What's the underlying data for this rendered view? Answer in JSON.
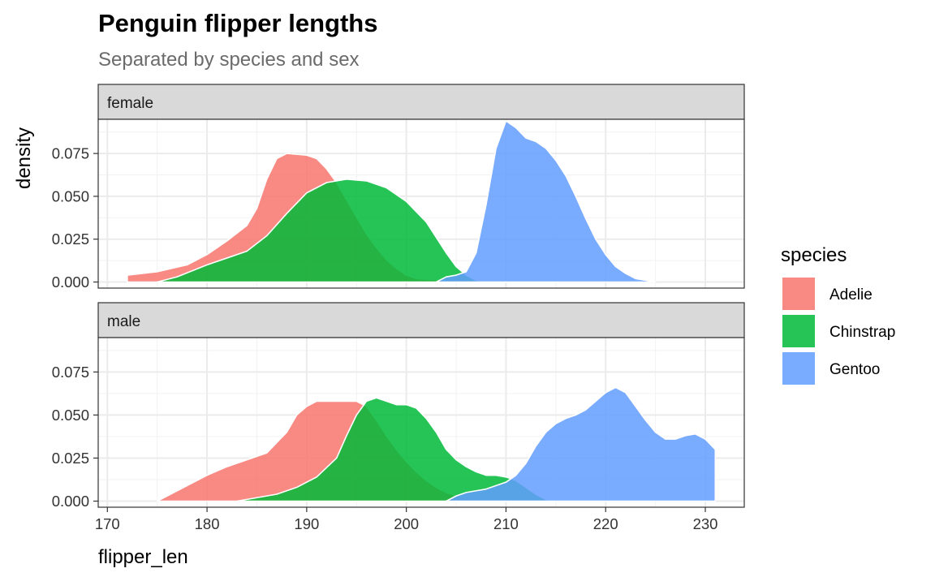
{
  "chart_data": {
    "type": "area",
    "subtype": "faceted-density",
    "title": "Penguin flipper lengths",
    "subtitle": "Separated by species and sex",
    "xlabel": "flipper_len",
    "ylabel": "density",
    "xlim": [
      170,
      233
    ],
    "ylim": [
      0,
      0.097
    ],
    "x_ticks": [
      170,
      180,
      190,
      200,
      210,
      220,
      230
    ],
    "x_tick_labels": [
      "170",
      "180",
      "190",
      "200",
      "210",
      "220",
      "230"
    ],
    "y_ticks": [
      0,
      0.025,
      0.05,
      0.075
    ],
    "y_tick_labels": [
      "0.000",
      "0.025",
      "0.050",
      "0.075"
    ],
    "grid": true,
    "legend": {
      "title": "species",
      "position": "right",
      "entries": [
        "Adelie",
        "Chinstrap",
        "Gentoo"
      ]
    },
    "colors": {
      "Adelie": "#F8766D",
      "Chinstrap": "#00BA38",
      "Gentoo": "#619CFF"
    },
    "fill_opacity": 0.85,
    "facets": [
      {
        "label": "female",
        "series": [
          {
            "name": "Adelie",
            "points": [
              [
                172,
                0.004
              ],
              [
                175,
                0.006
              ],
              [
                178,
                0.01
              ],
              [
                180,
                0.016
              ],
              [
                182,
                0.024
              ],
              [
                184,
                0.033
              ],
              [
                185,
                0.043
              ],
              [
                186,
                0.06
              ],
              [
                187,
                0.072
              ],
              [
                188,
                0.075
              ],
              [
                190,
                0.074
              ],
              [
                191,
                0.072
              ],
              [
                192,
                0.066
              ],
              [
                193,
                0.058
              ],
              [
                194,
                0.048
              ],
              [
                195,
                0.038
              ],
              [
                196,
                0.028
              ],
              [
                197,
                0.02
              ],
              [
                198,
                0.013
              ],
              [
                199,
                0.008
              ],
              [
                200,
                0.004
              ],
              [
                201,
                0.002
              ],
              [
                202,
                0.0015
              ],
              [
                203,
                0.0013
              ],
              [
                204,
                0.0012
              ],
              [
                205,
                0.0011
              ],
              [
                206,
                0.001
              ],
              [
                207,
                0.0009
              ],
              [
                208,
                0.0008
              ],
              [
                209,
                0.0007
              ],
              [
                210,
                0.0006
              ],
              [
                211,
                0.0005
              ],
              [
                212,
                0.0004
              ],
              [
                213,
                0.0003
              ],
              [
                214,
                0.0002
              ],
              [
                215,
                0
              ]
            ]
          },
          {
            "name": "Chinstrap",
            "points": [
              [
                175,
                0
              ],
              [
                177,
                0.003
              ],
              [
                180,
                0.01
              ],
              [
                182,
                0.014
              ],
              [
                184,
                0.018
              ],
              [
                186,
                0.027
              ],
              [
                188,
                0.04
              ],
              [
                190,
                0.052
              ],
              [
                192,
                0.058
              ],
              [
                194,
                0.06
              ],
              [
                196,
                0.059
              ],
              [
                198,
                0.055
              ],
              [
                200,
                0.047
              ],
              [
                202,
                0.035
              ],
              [
                203,
                0.026
              ],
              [
                204,
                0.017
              ],
              [
                205,
                0.009
              ],
              [
                206,
                0.004
              ],
              [
                207,
                0.001
              ],
              [
                208,
                0
              ]
            ]
          },
          {
            "name": "Gentoo",
            "points": [
              [
                203,
                0
              ],
              [
                204,
                0.003
              ],
              [
                205,
                0.004
              ],
              [
                206,
                0.006
              ],
              [
                207,
                0.017
              ],
              [
                208,
                0.045
              ],
              [
                209,
                0.078
              ],
              [
                210,
                0.094
              ],
              [
                211,
                0.09
              ],
              [
                212,
                0.084
              ],
              [
                213,
                0.082
              ],
              [
                214,
                0.078
              ],
              [
                215,
                0.071
              ],
              [
                216,
                0.062
              ],
              [
                217,
                0.05
              ],
              [
                218,
                0.037
              ],
              [
                219,
                0.025
              ],
              [
                220,
                0.016
              ],
              [
                221,
                0.009
              ],
              [
                222,
                0.005
              ],
              [
                223,
                0.002
              ],
              [
                224,
                0.001
              ],
              [
                225,
                0
              ]
            ]
          }
        ]
      },
      {
        "label": "male",
        "series": [
          {
            "name": "Adelie",
            "points": [
              [
                175,
                0
              ],
              [
                176,
                0.003
              ],
              [
                177,
                0.006
              ],
              [
                178,
                0.009
              ],
              [
                180,
                0.015
              ],
              [
                182,
                0.02
              ],
              [
                184,
                0.024
              ],
              [
                186,
                0.028
              ],
              [
                188,
                0.04
              ],
              [
                189,
                0.05
              ],
              [
                190,
                0.055
              ],
              [
                191,
                0.058
              ],
              [
                195,
                0.058
              ],
              [
                196,
                0.055
              ],
              [
                197,
                0.047
              ],
              [
                198,
                0.038
              ],
              [
                199,
                0.03
              ],
              [
                200,
                0.023
              ],
              [
                201,
                0.017
              ],
              [
                202,
                0.012
              ],
              [
                203,
                0.008
              ],
              [
                204,
                0.005
              ],
              [
                205,
                0.003
              ],
              [
                206,
                0.0015
              ],
              [
                208,
                0.0008
              ],
              [
                210,
                0.0004
              ],
              [
                212,
                0.0002
              ],
              [
                215,
                0
              ]
            ]
          },
          {
            "name": "Chinstrap",
            "points": [
              [
                183,
                0
              ],
              [
                185,
                0.002
              ],
              [
                187,
                0.004
              ],
              [
                189,
                0.008
              ],
              [
                191,
                0.014
              ],
              [
                193,
                0.025
              ],
              [
                194,
                0.038
              ],
              [
                195,
                0.05
              ],
              [
                196,
                0.058
              ],
              [
                197,
                0.06
              ],
              [
                198,
                0.058
              ],
              [
                199,
                0.056
              ],
              [
                200,
                0.056
              ],
              [
                201,
                0.054
              ],
              [
                202,
                0.048
              ],
              [
                203,
                0.04
              ],
              [
                204,
                0.03
              ],
              [
                205,
                0.024
              ],
              [
                206,
                0.02
              ],
              [
                207,
                0.017
              ],
              [
                208,
                0.015
              ],
              [
                209,
                0.015
              ],
              [
                210,
                0.014
              ],
              [
                211,
                0.012
              ],
              [
                212,
                0.008
              ],
              [
                213,
                0.004
              ],
              [
                214,
                0.001
              ],
              [
                215,
                0
              ]
            ]
          },
          {
            "name": "Gentoo",
            "points": [
              [
                204,
                0
              ],
              [
                205,
                0.003
              ],
              [
                206,
                0.005
              ],
              [
                207,
                0.006
              ],
              [
                208,
                0.007
              ],
              [
                209,
                0.009
              ],
              [
                210,
                0.011
              ],
              [
                211,
                0.015
              ],
              [
                212,
                0.022
              ],
              [
                213,
                0.032
              ],
              [
                214,
                0.04
              ],
              [
                215,
                0.045
              ],
              [
                216,
                0.048
              ],
              [
                217,
                0.05
              ],
              [
                218,
                0.053
              ],
              [
                219,
                0.058
              ],
              [
                220,
                0.063
              ],
              [
                221,
                0.066
              ],
              [
                222,
                0.063
              ],
              [
                223,
                0.055
              ],
              [
                224,
                0.047
              ],
              [
                225,
                0.04
              ],
              [
                226,
                0.036
              ],
              [
                227,
                0.036
              ],
              [
                228,
                0.038
              ],
              [
                229,
                0.039
              ],
              [
                230,
                0.036
              ],
              [
                231,
                0.03
              ]
            ]
          }
        ]
      }
    ]
  }
}
